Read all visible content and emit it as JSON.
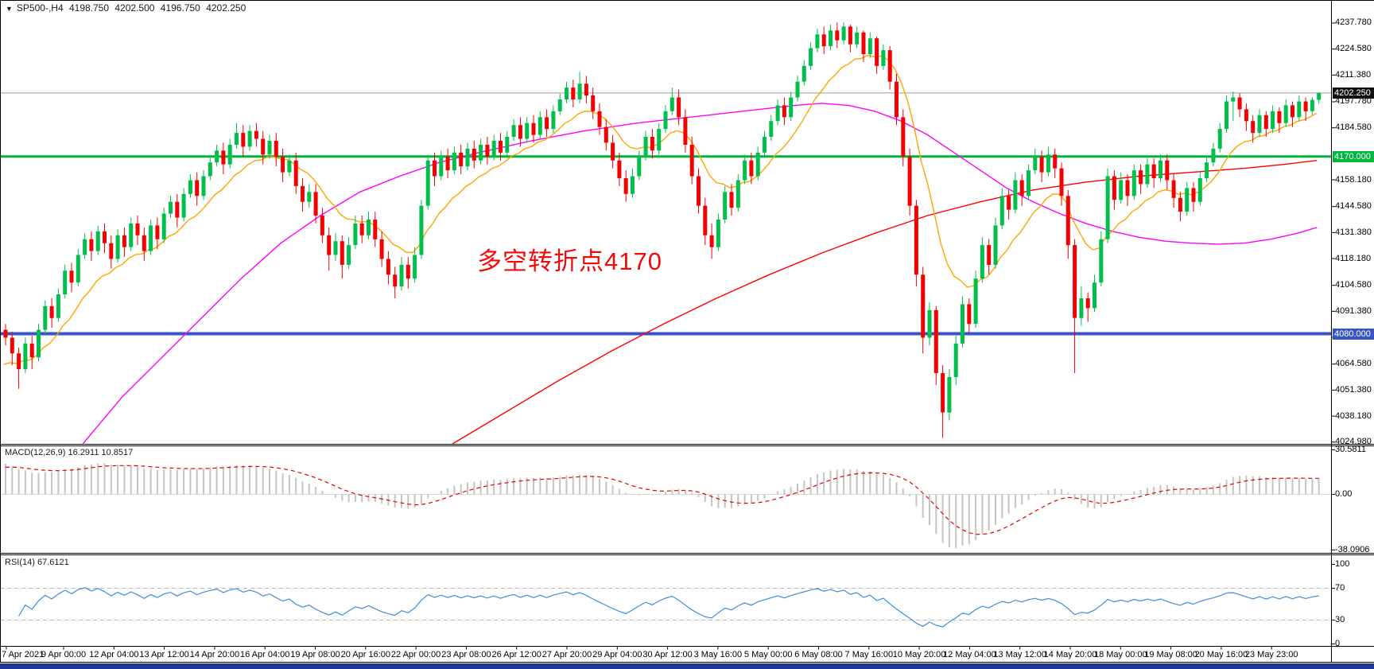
{
  "header": {
    "symbol_period": "SP500-,H4",
    "open": "4198.750",
    "high": "4202.500",
    "low": "4196.750",
    "close": "4202.250"
  },
  "annotation": {
    "text": "多空转折点4170"
  },
  "price_axis": {
    "current_label": "4202.250",
    "resistance_label": "4170.000",
    "support_label": "4080.000",
    "ticks": [
      "4237.780",
      "4224.580",
      "4211.380",
      "4197.780",
      "4184.580",
      "4158.180",
      "4144.580",
      "4131.380",
      "4118.180",
      "4104.580",
      "4091.380",
      "4078.180",
      "4064.580",
      "4051.380",
      "4038.180",
      "4024.980"
    ]
  },
  "indicators": {
    "macd": {
      "label": "MACD(12,26,9)",
      "value_main": "16.2911",
      "value_signal": "10.8517",
      "axis": [
        "30.5811",
        "0.00",
        "-38.0906"
      ],
      "range": [
        -38.0906,
        30.5811
      ]
    },
    "rsi": {
      "label": "RSI(14)",
      "value": "67.6121",
      "axis": [
        "100",
        "70",
        "30",
        "0"
      ],
      "levels": [
        70,
        30
      ]
    }
  },
  "time_axis": {
    "labels": [
      "7 Apr 2021",
      "9 Apr 00:00",
      "12 Apr 04:00",
      "13 Apr 12:00",
      "14 Apr 20:00",
      "16 Apr 04:00",
      "19 Apr 08:00",
      "20 Apr 16:00",
      "22 Apr 00:00",
      "23 Apr 08:00",
      "26 Apr 12:00",
      "27 Apr 20:00",
      "29 Apr 04:00",
      "30 Apr 12:00",
      "3 May 16:00",
      "5 May 00:00",
      "6 May 08:00",
      "7 May 16:00",
      "10 May 20:00",
      "12 May 04:00",
      "13 May 12:00",
      "14 May 20:00",
      "18 May 00:00",
      "19 May 08:00",
      "20 May 16:00",
      "23 May 23:00"
    ]
  },
  "colors": {
    "bull": "#00bf4a",
    "bear": "#f40000",
    "ma_fast": "#ffa500",
    "ma_mid": "#ff00ff",
    "ma_slow": "#ff0000",
    "current_line": "#9a9a9a",
    "resistance_line": "#00b43c",
    "support_line": "#3656c8",
    "current_badge_bg": "#111111",
    "resistance_badge_bg": "#00b43c",
    "support_badge_bg": "#3656c8",
    "macd_hist": "#c4c4c4",
    "macd_signal": "#e00000",
    "rsi_line": "#3e8ed8",
    "grid_dash": "#b8b8b8",
    "annotation": "#f00a0a",
    "taskbar": "#1d3a96"
  },
  "chart_data": {
    "type": "candlestick",
    "symbol": "SP500-",
    "timeframe": "H4",
    "title": "SP500- H4 with MACD(12,26,9) and RSI(14)",
    "visible_price_range": [
      4024.5,
      4249.5
    ],
    "levels": {
      "current": 4202.25,
      "resistance": 4170.0,
      "support": 4080.0
    },
    "candles": [
      [
        4082,
        4085,
        4074,
        4078
      ],
      [
        4078,
        4081,
        4064,
        4070
      ],
      [
        4070,
        4073,
        4052,
        4062
      ],
      [
        4062,
        4078,
        4060,
        4075
      ],
      [
        4075,
        4079,
        4062,
        4068
      ],
      [
        4068,
        4085,
        4066,
        4082
      ],
      [
        4082,
        4097,
        4080,
        4094
      ],
      [
        4094,
        4098,
        4083,
        4088
      ],
      [
        4088,
        4103,
        4086,
        4100
      ],
      [
        4100,
        4115,
        4098,
        4112
      ],
      [
        4112,
        4116,
        4101,
        4106
      ],
      [
        4106,
        4123,
        4104,
        4120
      ],
      [
        4120,
        4131,
        4118,
        4128
      ],
      [
        4128,
        4132,
        4117,
        4122
      ],
      [
        4122,
        4135,
        4120,
        4132
      ],
      [
        4132,
        4136,
        4121,
        4126
      ],
      [
        4126,
        4130,
        4113,
        4118
      ],
      [
        4118,
        4133,
        4116,
        4130
      ],
      [
        4130,
        4134,
        4119,
        4124
      ],
      [
        4124,
        4139,
        4122,
        4136
      ],
      [
        4136,
        4140,
        4125,
        4130
      ],
      [
        4130,
        4134,
        4117,
        4122
      ],
      [
        4122,
        4138,
        4120,
        4135
      ],
      [
        4135,
        4139,
        4123,
        4128
      ],
      [
        4128,
        4144,
        4126,
        4141
      ],
      [
        4141,
        4150,
        4139,
        4147
      ],
      [
        4147,
        4151,
        4134,
        4139
      ],
      [
        4139,
        4154,
        4137,
        4151
      ],
      [
        4151,
        4161,
        4149,
        4158
      ],
      [
        4158,
        4162,
        4145,
        4150
      ],
      [
        4150,
        4163,
        4148,
        4160
      ],
      [
        4160,
        4170,
        4158,
        4167
      ],
      [
        4167,
        4176,
        4165,
        4173
      ],
      [
        4173,
        4177,
        4161,
        4166
      ],
      [
        4166,
        4179,
        4164,
        4176
      ],
      [
        4176,
        4187,
        4174,
        4182
      ],
      [
        4182,
        4186,
        4170,
        4175
      ],
      [
        4175,
        4186,
        4173,
        4183
      ],
      [
        4183,
        4187,
        4175,
        4179
      ],
      [
        4179,
        4183,
        4166,
        4171
      ],
      [
        4171,
        4181,
        4169,
        4178
      ],
      [
        4178,
        4182,
        4165,
        4170
      ],
      [
        4170,
        4174,
        4157,
        4162
      ],
      [
        4162,
        4171,
        4160,
        4168
      ],
      [
        4168,
        4172,
        4151,
        4155
      ],
      [
        4155,
        4159,
        4142,
        4147
      ],
      [
        4147,
        4156,
        4144,
        4152
      ],
      [
        4152,
        4156,
        4136,
        4140
      ],
      [
        4140,
        4144,
        4126,
        4130
      ],
      [
        4130,
        4134,
        4112,
        4120
      ],
      [
        4120,
        4131,
        4117,
        4127
      ],
      [
        4127,
        4130,
        4108,
        4115
      ],
      [
        4115,
        4129,
        4113,
        4125
      ],
      [
        4125,
        4140,
        4123,
        4136
      ],
      [
        4136,
        4140,
        4126,
        4130
      ],
      [
        4130,
        4142,
        4128,
        4138
      ],
      [
        4138,
        4142,
        4124,
        4128
      ],
      [
        4128,
        4132,
        4114,
        4118
      ],
      [
        4118,
        4122,
        4105,
        4110
      ],
      [
        4110,
        4114,
        4098,
        4104
      ],
      [
        4104,
        4119,
        4102,
        4115
      ],
      [
        4115,
        4119,
        4103,
        4108
      ],
      [
        4108,
        4124,
        4106,
        4120
      ],
      [
        4120,
        4148,
        4118,
        4145
      ],
      [
        4145,
        4171,
        4143,
        4168
      ],
      [
        4168,
        4172,
        4155,
        4160
      ],
      [
        4160,
        4173,
        4158,
        4170
      ],
      [
        4170,
        4174,
        4159,
        4163
      ],
      [
        4163,
        4175,
        4161,
        4172
      ],
      [
        4172,
        4176,
        4161,
        4165
      ],
      [
        4165,
        4177,
        4163,
        4174
      ],
      [
        4174,
        4178,
        4164,
        4168
      ],
      [
        4168,
        4179,
        4166,
        4176
      ],
      [
        4176,
        4180,
        4166,
        4170
      ],
      [
        4170,
        4181,
        4168,
        4178
      ],
      [
        4178,
        4182,
        4168,
        4172
      ],
      [
        4172,
        4183,
        4170,
        4180
      ],
      [
        4180,
        4189,
        4178,
        4186
      ],
      [
        4186,
        4190,
        4175,
        4179
      ],
      [
        4179,
        4190,
        4177,
        4187
      ],
      [
        4187,
        4191,
        4177,
        4181
      ],
      [
        4181,
        4193,
        4179,
        4190
      ],
      [
        4190,
        4194,
        4180,
        4184
      ],
      [
        4184,
        4196,
        4182,
        4193
      ],
      [
        4193,
        4202,
        4191,
        4199
      ],
      [
        4199,
        4208,
        4197,
        4205
      ],
      [
        4205,
        4209,
        4195,
        4199
      ],
      [
        4199,
        4213,
        4197,
        4207
      ],
      [
        4207,
        4211,
        4197,
        4201
      ],
      [
        4201,
        4205,
        4189,
        4193
      ],
      [
        4193,
        4197,
        4181,
        4185
      ],
      [
        4185,
        4189,
        4173,
        4177
      ],
      [
        4177,
        4181,
        4164,
        4168
      ],
      [
        4168,
        4172,
        4155,
        4159
      ],
      [
        4159,
        4163,
        4147,
        4151
      ],
      [
        4151,
        4164,
        4149,
        4160
      ],
      [
        4160,
        4173,
        4158,
        4170
      ],
      [
        4170,
        4183,
        4168,
        4180
      ],
      [
        4180,
        4184,
        4169,
        4173
      ],
      [
        4173,
        4187,
        4171,
        4184
      ],
      [
        4184,
        4196,
        4182,
        4193
      ],
      [
        4193,
        4205,
        4191,
        4200
      ],
      [
        4200,
        4204,
        4186,
        4190
      ],
      [
        4190,
        4194,
        4172,
        4176
      ],
      [
        4176,
        4180,
        4156,
        4160
      ],
      [
        4160,
        4164,
        4141,
        4145
      ],
      [
        4145,
        4149,
        4125,
        4130
      ],
      [
        4130,
        4136,
        4118,
        4124
      ],
      [
        4124,
        4141,
        4122,
        4138
      ],
      [
        4138,
        4155,
        4136,
        4152
      ],
      [
        4152,
        4156,
        4140,
        4144
      ],
      [
        4144,
        4161,
        4142,
        4158
      ],
      [
        4158,
        4171,
        4156,
        4168
      ],
      [
        4168,
        4172,
        4156,
        4160
      ],
      [
        4160,
        4175,
        4158,
        4172
      ],
      [
        4172,
        4183,
        4170,
        4180
      ],
      [
        4180,
        4191,
        4178,
        4188
      ],
      [
        4188,
        4199,
        4186,
        4196
      ],
      [
        4196,
        4200,
        4186,
        4190
      ],
      [
        4190,
        4203,
        4188,
        4200
      ],
      [
        4200,
        4211,
        4198,
        4208
      ],
      [
        4208,
        4219,
        4206,
        4216
      ],
      [
        4216,
        4228,
        4214,
        4225
      ],
      [
        4225,
        4235,
        4223,
        4232
      ],
      [
        4232,
        4236,
        4222,
        4226
      ],
      [
        4226,
        4237,
        4224,
        4234
      ],
      [
        4234,
        4238,
        4225,
        4229
      ],
      [
        4229,
        4238,
        4227,
        4236
      ],
      [
        4236,
        4237,
        4223,
        4227
      ],
      [
        4227,
        4236,
        4225,
        4233
      ],
      [
        4233,
        4234,
        4218,
        4222
      ],
      [
        4222,
        4233,
        4220,
        4230
      ],
      [
        4230,
        4231,
        4212,
        4216
      ],
      [
        4216,
        4227,
        4214,
        4224
      ],
      [
        4224,
        4226,
        4204,
        4208
      ],
      [
        4208,
        4212,
        4186,
        4190
      ],
      [
        4190,
        4194,
        4165,
        4170
      ],
      [
        4170,
        4174,
        4140,
        4145
      ],
      [
        4145,
        4148,
        4104,
        4110
      ],
      [
        4110,
        4114,
        4070,
        4078
      ],
      [
        4078,
        4096,
        4074,
        4092
      ],
      [
        4092,
        4094,
        4054,
        4060
      ],
      [
        4060,
        4064,
        4027,
        4040
      ],
      [
        4040,
        4062,
        4036,
        4058
      ],
      [
        4058,
        4079,
        4054,
        4075
      ],
      [
        4075,
        4099,
        4073,
        4095
      ],
      [
        4095,
        4098,
        4080,
        4085
      ],
      [
        4085,
        4112,
        4083,
        4108
      ],
      [
        4108,
        4129,
        4106,
        4125
      ],
      [
        4125,
        4128,
        4110,
        4115
      ],
      [
        4115,
        4139,
        4113,
        4135
      ],
      [
        4135,
        4154,
        4133,
        4150
      ],
      [
        4150,
        4153,
        4138,
        4143
      ],
      [
        4143,
        4162,
        4141,
        4158
      ],
      [
        4158,
        4161,
        4145,
        4150
      ],
      [
        4150,
        4166,
        4148,
        4163
      ],
      [
        4163,
        4174,
        4161,
        4170
      ],
      [
        4170,
        4173,
        4157,
        4162
      ],
      [
        4162,
        4175,
        4160,
        4171
      ],
      [
        4171,
        4174,
        4159,
        4164
      ],
      [
        4164,
        4167,
        4145,
        4150
      ],
      [
        4150,
        4153,
        4118,
        4125
      ],
      [
        4125,
        4128,
        4060,
        4088
      ],
      [
        4088,
        4104,
        4084,
        4098
      ],
      [
        4098,
        4101,
        4086,
        4093
      ],
      [
        4093,
        4110,
        4091,
        4106
      ],
      [
        4106,
        4132,
        4104,
        4128
      ],
      [
        4128,
        4164,
        4126,
        4160
      ],
      [
        4160,
        4163,
        4143,
        4148
      ],
      [
        4148,
        4162,
        4146,
        4158
      ],
      [
        4158,
        4161,
        4145,
        4150
      ],
      [
        4150,
        4166,
        4148,
        4163
      ],
      [
        4163,
        4166,
        4151,
        4156
      ],
      [
        4156,
        4169,
        4154,
        4166
      ],
      [
        4166,
        4169,
        4154,
        4159
      ],
      [
        4159,
        4171,
        4157,
        4168
      ],
      [
        4168,
        4171,
        4153,
        4158
      ],
      [
        4158,
        4161,
        4144,
        4149
      ],
      [
        4149,
        4152,
        4137,
        4142
      ],
      [
        4142,
        4157,
        4140,
        4154
      ],
      [
        4154,
        4157,
        4142,
        4147
      ],
      [
        4147,
        4162,
        4145,
        4159
      ],
      [
        4159,
        4170,
        4157,
        4167
      ],
      [
        4167,
        4177,
        4165,
        4174
      ],
      [
        4174,
        4187,
        4172,
        4184
      ],
      [
        4184,
        4201,
        4182,
        4198
      ],
      [
        4198,
        4203,
        4188,
        4200
      ],
      [
        4200,
        4202,
        4190,
        4194
      ],
      [
        4194,
        4197,
        4183,
        4188
      ],
      [
        4188,
        4191,
        4177,
        4182
      ],
      [
        4182,
        4194,
        4180,
        4191
      ],
      [
        4191,
        4193,
        4180,
        4184
      ],
      [
        4184,
        4196,
        4182,
        4193
      ],
      [
        4193,
        4195,
        4182,
        4187
      ],
      [
        4187,
        4199,
        4185,
        4196
      ],
      [
        4196,
        4198,
        4185,
        4190
      ],
      [
        4190,
        4201,
        4188,
        4198
      ],
      [
        4198,
        4200,
        4188,
        4193
      ],
      [
        4193,
        4200,
        4191,
        4198.75
      ],
      [
        4198.75,
        4202.5,
        4196.75,
        4202.25
      ]
    ],
    "ma_paths": {
      "magenta_mid_ma": [
        [
          12,
          4024
        ],
        [
          18,
          4048
        ],
        [
          24,
          4068
        ],
        [
          30,
          4088
        ],
        [
          36,
          4108
        ],
        [
          42,
          4126
        ],
        [
          48,
          4140
        ],
        [
          54,
          4152
        ],
        [
          60,
          4160
        ],
        [
          66,
          4167
        ],
        [
          72,
          4172
        ],
        [
          80,
          4178
        ],
        [
          88,
          4183
        ],
        [
          96,
          4187
        ],
        [
          104,
          4190
        ],
        [
          112,
          4193
        ],
        [
          120,
          4196
        ],
        [
          124,
          4197
        ],
        [
          128,
          4196
        ],
        [
          132,
          4193
        ],
        [
          136,
          4188
        ],
        [
          140,
          4181
        ],
        [
          144,
          4172
        ],
        [
          148,
          4163
        ],
        [
          152,
          4154
        ],
        [
          156,
          4147
        ],
        [
          160,
          4141
        ],
        [
          164,
          4136
        ],
        [
          168,
          4132
        ],
        [
          172,
          4129
        ],
        [
          176,
          4127
        ],
        [
          180,
          4126
        ],
        [
          184,
          4125.5
        ],
        [
          188,
          4126
        ],
        [
          192,
          4128
        ],
        [
          196,
          4131
        ],
        [
          199,
          4134
        ]
      ],
      "red_slow_ma": [
        [
          68,
          4024
        ],
        [
          76,
          4040
        ],
        [
          84,
          4056
        ],
        [
          92,
          4071
        ],
        [
          100,
          4085
        ],
        [
          108,
          4098
        ],
        [
          116,
          4110
        ],
        [
          124,
          4121
        ],
        [
          132,
          4131
        ],
        [
          140,
          4140
        ],
        [
          148,
          4147
        ],
        [
          156,
          4153
        ],
        [
          164,
          4157
        ],
        [
          172,
          4160
        ],
        [
          180,
          4162
        ],
        [
          188,
          4164
        ],
        [
          194,
          4166
        ],
        [
          199,
          4168
        ]
      ],
      "orange_fast_ma_period": 12
    }
  }
}
